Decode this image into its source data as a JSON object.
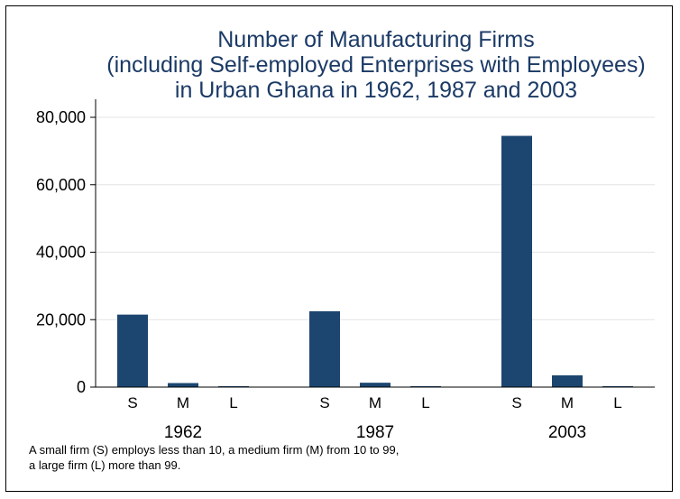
{
  "chart_data": {
    "type": "bar",
    "title_lines": [
      "Number of Manufacturing Firms",
      "(including Self-employed Enterprises with Employees)",
      "in Urban Ghana in 1962, 1987 and 2003"
    ],
    "groups": [
      "1962",
      "1987",
      "2003"
    ],
    "categories": [
      "S",
      "M",
      "L"
    ],
    "values": [
      [
        21500,
        1200,
        0
      ],
      [
        22500,
        1300,
        100
      ],
      [
        74500,
        3500,
        150
      ]
    ],
    "ylim": [
      0,
      80000
    ],
    "yticks": [
      {
        "value": 0,
        "label": "0"
      },
      {
        "value": 20000,
        "label": "20,000"
      },
      {
        "value": 40000,
        "label": "40,000"
      },
      {
        "value": 60000,
        "label": "60,000"
      },
      {
        "value": 80000,
        "label": "80,000"
      }
    ],
    "grid": true,
    "bar_color": "#1c4670",
    "note_lines": [
      "A small firm (S) employs less than 10, a medium firm (M) from 10 to 99,",
      "a large firm (L) more than 99."
    ]
  }
}
